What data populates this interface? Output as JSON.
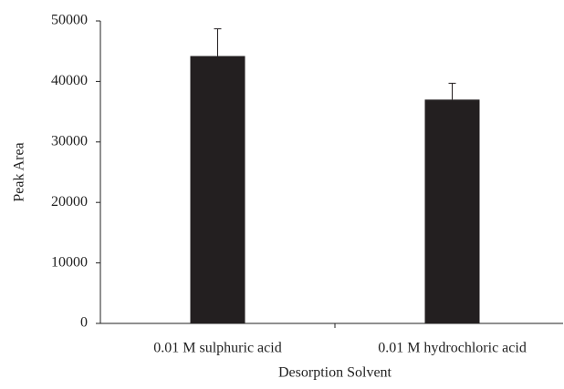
{
  "chart_data": {
    "type": "bar",
    "x_label": "Desorption Solvent",
    "y_label": "Peak Area",
    "categories": [
      "0.01 M sulphuric acid",
      "0.01 M hydrochloric acid"
    ],
    "values": [
      44200,
      37000
    ],
    "errors": [
      4500,
      2700
    ],
    "color": "#231f20",
    "ylim": [
      0,
      50000
    ],
    "yticks": [
      0,
      10000,
      20000,
      30000,
      40000,
      50000
    ],
    "grid": false
  }
}
